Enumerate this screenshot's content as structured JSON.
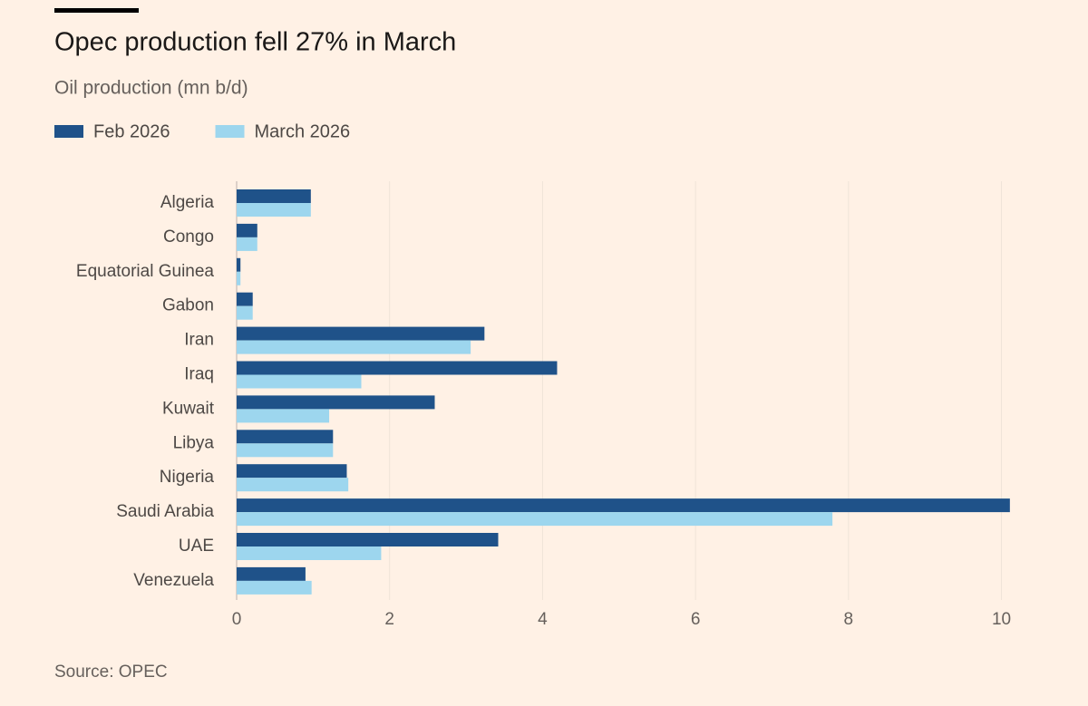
{
  "chart_data": {
    "type": "bar",
    "orientation": "horizontal",
    "title": "Opec production fell 27% in March",
    "subtitle": "Oil production (mn b/d)",
    "source": "Source: OPEC",
    "categories": [
      "Algeria",
      "Congo",
      "Equatorial Guinea",
      "Gabon",
      "Iran",
      "Iraq",
      "Kuwait",
      "Libya",
      "Nigeria",
      "Saudi Arabia",
      "UAE",
      "Venezuela"
    ],
    "series": [
      {
        "name": "Feb 2026",
        "color": "#1f5289",
        "values": [
          0.97,
          0.27,
          0.05,
          0.21,
          3.24,
          4.19,
          2.59,
          1.26,
          1.44,
          10.11,
          3.42,
          0.9
        ]
      },
      {
        "name": "March 2026",
        "color": "#9dd6ee",
        "values": [
          0.97,
          0.27,
          0.05,
          0.21,
          3.06,
          1.63,
          1.21,
          1.26,
          1.46,
          7.79,
          1.89,
          0.98
        ]
      }
    ],
    "xlim": [
      0,
      10.1
    ],
    "xticks": [
      0,
      2,
      4,
      6,
      8,
      10
    ],
    "grid": true
  }
}
